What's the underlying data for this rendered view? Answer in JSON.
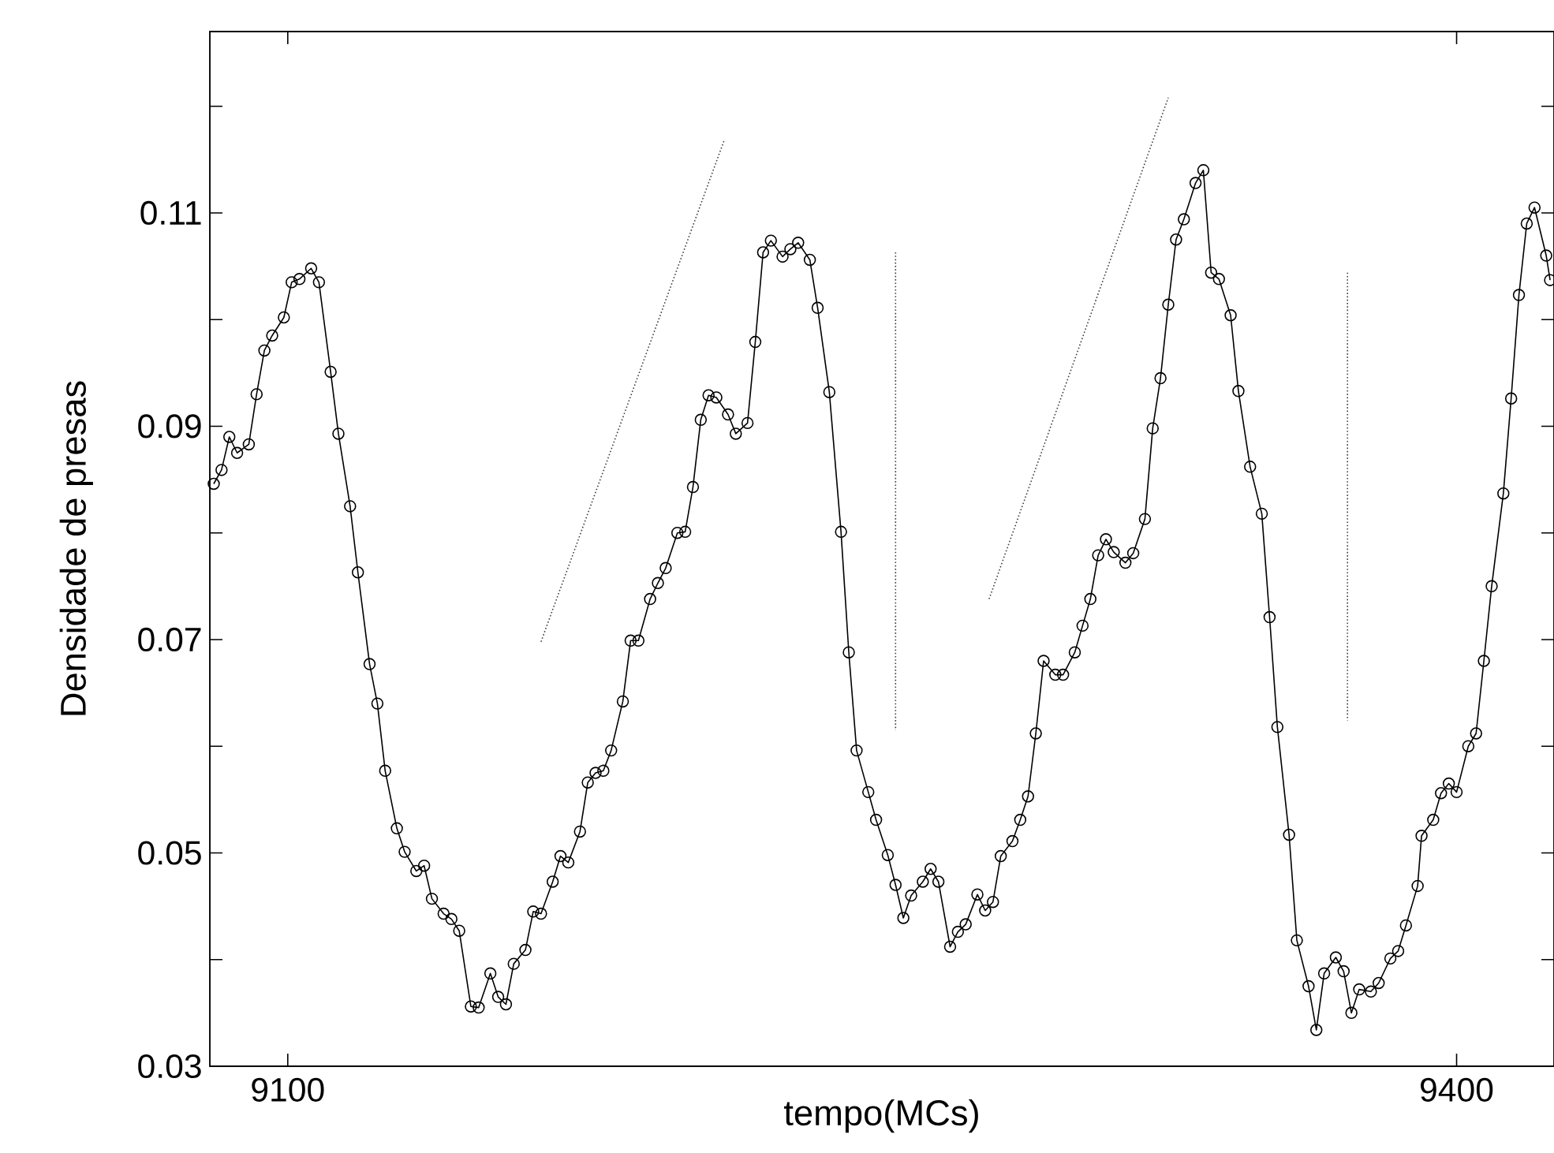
{
  "chart_data": {
    "type": "line",
    "xlabel": "tempo(MCs)",
    "ylabel": "Densidade de presas",
    "xlim": [
      9080,
      9425
    ],
    "ylim": [
      0.03,
      0.127
    ],
    "xticks": [
      9100,
      9400
    ],
    "yticks": [
      0.03,
      {
        "value": 0.04,
        "label": null
      },
      0.05,
      {
        "value": 0.06,
        "label": null
      },
      0.07,
      {
        "value": 0.08,
        "label": null
      },
      0.09,
      {
        "value": 0.1,
        "label": null
      },
      0.11,
      {
        "value": 0.12,
        "label": null
      }
    ],
    "grid": false,
    "series": [
      {
        "color": "#000000",
        "marker": "circle",
        "line_style": "solid",
        "x": [
          9081,
          9083,
          9085,
          9087,
          9090,
          9092,
          9094,
          9096,
          9099,
          9101,
          9103,
          9106,
          9108,
          9111,
          9113,
          9116,
          9118,
          9121,
          9123,
          9125,
          9128,
          9130,
          9133,
          9135,
          9137,
          9140,
          9142,
          9144,
          9147,
          9149,
          9152,
          9154,
          9156,
          9158,
          9161,
          9163,
          9165,
          9168,
          9170,
          9172,
          9175,
          9177,
          9179,
          9181,
          9183,
          9186,
          9188,
          9190,
          9193,
          9195,
          9197,
          9200,
          9202,
          9204,
          9206,
          9208,
          9210,
          9213,
          9215,
          9218,
          9220,
          9222,
          9224,
          9227,
          9229,
          9231,
          9234,
          9236,
          9239,
          9242,
          9244,
          9246,
          9249,
          9251,
          9254,
          9256,
          9258,
          9260,
          9263,
          9265,
          9267,
          9270,
          9272,
          9274,
          9277,
          9279,
          9281,
          9283,
          9286,
          9288,
          9290,
          9292,
          9294,
          9297,
          9299,
          9302,
          9304,
          9306,
          9308,
          9310,
          9312,
          9315,
          9317,
          9320,
          9322,
          9324,
          9326,
          9328,
          9330,
          9333,
          9335,
          9337,
          9339,
          9342,
          9344,
          9347,
          9350,
          9352,
          9354,
          9357,
          9359,
          9362,
          9364,
          9366,
          9369,
          9371,
          9373,
          9375,
          9378,
          9380,
          9383,
          9385,
          9387,
          9390,
          9391,
          9394,
          9396,
          9398,
          9400,
          9403,
          9405,
          9407,
          9409,
          9412,
          9414,
          9416,
          9418,
          9420,
          9423,
          9424
        ],
        "values": [
          0.0846,
          0.0859,
          0.089,
          0.0875,
          0.0883,
          0.093,
          0.0971,
          0.0985,
          0.1002,
          0.1035,
          0.1038,
          0.1048,
          0.1035,
          0.0951,
          0.0893,
          0.0825,
          0.0763,
          0.0677,
          0.064,
          0.0577,
          0.0523,
          0.0501,
          0.0483,
          0.0488,
          0.0457,
          0.0443,
          0.0438,
          0.0427,
          0.0356,
          0.0355,
          0.0387,
          0.0365,
          0.0358,
          0.0396,
          0.0409,
          0.0445,
          0.0443,
          0.0473,
          0.0497,
          0.0491,
          0.052,
          0.0566,
          0.0575,
          0.0577,
          0.0596,
          0.0642,
          0.0699,
          0.0699,
          0.0738,
          0.0753,
          0.0767,
          0.08,
          0.0801,
          0.0843,
          0.0906,
          0.0929,
          0.0927,
          0.0911,
          0.0893,
          0.0903,
          0.0979,
          0.1063,
          0.1074,
          0.1059,
          0.1066,
          0.1072,
          0.1056,
          0.1011,
          0.0932,
          0.0801,
          0.0688,
          0.0596,
          0.0557,
          0.0531,
          0.0498,
          0.047,
          0.0439,
          0.046,
          0.0473,
          0.0485,
          0.0473,
          0.0412,
          0.0426,
          0.0433,
          0.0461,
          0.0446,
          0.0454,
          0.0497,
          0.0511,
          0.0531,
          0.0553,
          0.0612,
          0.068,
          0.0667,
          0.0667,
          0.0688,
          0.0713,
          0.0738,
          0.0779,
          0.0794,
          0.0782,
          0.0772,
          0.0781,
          0.0813,
          0.0898,
          0.0945,
          0.1014,
          0.1075,
          0.1094,
          0.1128,
          0.114,
          0.1044,
          0.1038,
          0.1004,
          0.0933,
          0.0862,
          0.0818,
          0.0721,
          0.0618,
          0.0517,
          0.0418,
          0.0375,
          0.0334,
          0.0387,
          0.0402,
          0.0389,
          0.035,
          0.0372,
          0.037,
          0.0378,
          0.0401,
          0.0408,
          0.0432,
          0.0469,
          0.0516,
          0.0531,
          0.0556,
          0.0565,
          0.0557,
          0.06,
          0.0612,
          0.068,
          0.075,
          0.0837,
          0.0926,
          0.1023,
          0.109,
          0.1105,
          0.106,
          0.1037
        ]
      },
      {
        "color": "#404040",
        "marker": "none",
        "line_style": "dotted",
        "x": [
          9165,
          9212,
          null,
          9256,
          9256,
          null,
          9280,
          9326,
          null,
          9372,
          9372
        ],
        "values": [
          0.0698,
          0.1168,
          null,
          0.1063,
          0.0615,
          null,
          0.0738,
          0.1208,
          null,
          0.1044,
          0.0624
        ]
      }
    ]
  }
}
